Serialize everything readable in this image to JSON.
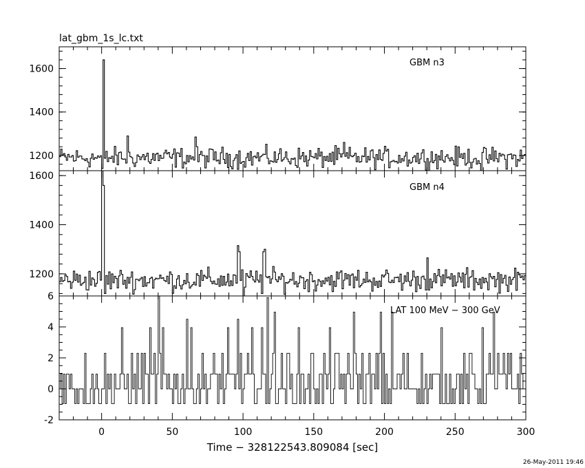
{
  "file_title": "lat_gbm_1s_lc.txt",
  "xlabel": "Time − 328122543.809084 [sec]",
  "timestamp": "26-May-2011 19:46",
  "colors": {
    "line": "#000000",
    "background": "#ffffff"
  },
  "chart_data": [
    {
      "type": "line",
      "title": "lat_gbm_1s_lc.txt",
      "panel_label": "GBM n3",
      "xlim": [
        -30,
        300
      ],
      "ylim": [
        1130,
        1700
      ],
      "yticks": [
        1200,
        1400,
        1600
      ],
      "baseline": 1190,
      "noise": 33,
      "spikes": [
        {
          "x": 0,
          "y": 1700
        },
        {
          "x": 1,
          "y": 1640
        },
        {
          "x": 18,
          "y": 1290
        },
        {
          "x": 66,
          "y": 1285
        },
        {
          "x": 171,
          "y": 1260
        }
      ],
      "dips": [
        {
          "x": 0,
          "y": 1140
        },
        {
          "x": 268,
          "y": 1130
        }
      ]
    },
    {
      "type": "line",
      "panel_label": "GBM n4",
      "xlim": [
        -30,
        300
      ],
      "ylim": [
        1110,
        1620
      ],
      "yticks": [
        1200,
        1400,
        1600
      ],
      "baseline": 1175,
      "noise": 32,
      "spikes": [
        {
          "x": 0,
          "y": 1620
        },
        {
          "x": 1,
          "y": 1560
        },
        {
          "x": 96,
          "y": 1315
        },
        {
          "x": 97,
          "y": 1290
        },
        {
          "x": 114,
          "y": 1290
        },
        {
          "x": 115,
          "y": 1300
        },
        {
          "x": 230,
          "y": 1265
        }
      ],
      "dips": [
        {
          "x": 2,
          "y": 1120
        },
        {
          "x": 100,
          "y": 1110
        },
        {
          "x": 113,
          "y": 1120
        }
      ]
    },
    {
      "type": "line",
      "panel_label": "LAT 100 MeV − 300 GeV",
      "xlim": [
        -30,
        300
      ],
      "ylim": [
        -2,
        6
      ],
      "yticks": [
        -2,
        0,
        2,
        4,
        6
      ],
      "xticks": [
        0,
        50,
        100,
        150,
        200,
        250,
        300
      ],
      "levels": [
        -0.95,
        0,
        0.95,
        2.3,
        3.95
      ],
      "spikes": [
        {
          "x": 40,
          "y": 6.0
        },
        {
          "x": 117,
          "y": 5.9
        },
        {
          "x": 122,
          "y": 4.95
        },
        {
          "x": 178,
          "y": 4.95
        },
        {
          "x": 197,
          "y": 4.95
        },
        {
          "x": 205,
          "y": 4.95
        },
        {
          "x": 277,
          "y": 4.95
        },
        {
          "x": 60,
          "y": 4.5
        },
        {
          "x": 96,
          "y": 4.5
        }
      ]
    }
  ]
}
